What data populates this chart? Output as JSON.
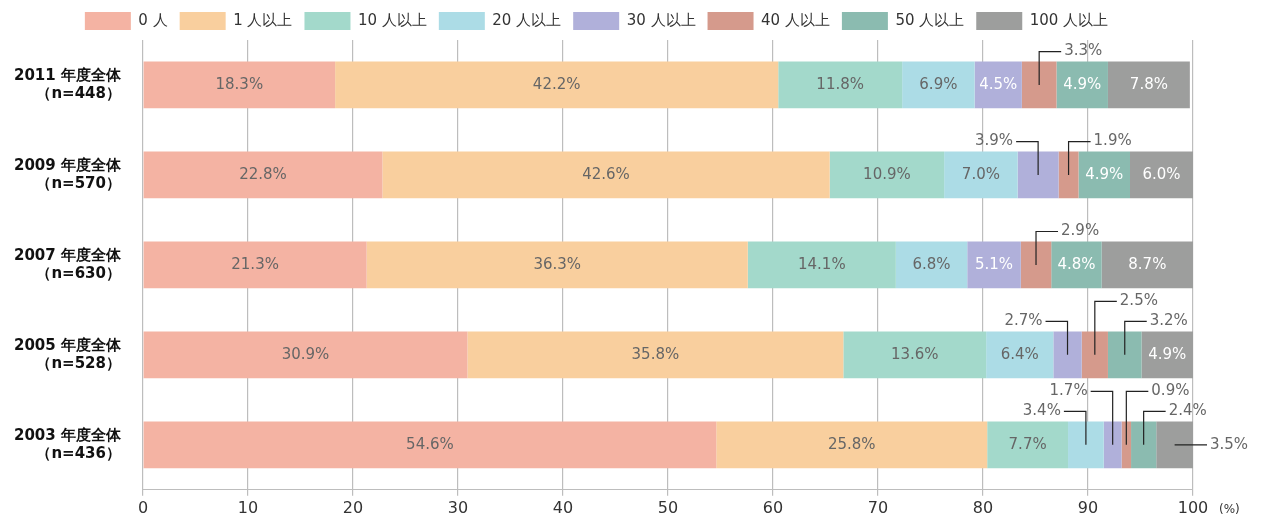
{
  "chart_data": {
    "type": "bar",
    "orientation": "horizontal",
    "stacked": true,
    "xlabel": "(%)",
    "categories": [
      "2011 年度全体（n=448）",
      "2009 年度全体（n=570）",
      "2007 年度全体（n=630）",
      "2005 年度全体（n=528）",
      "2003 年度全体（n=436）"
    ],
    "series": [
      {
        "name": "0 人",
        "color": "#f4b3a3",
        "values": [
          18.3,
          22.8,
          21.3,
          30.9,
          54.6
        ],
        "value_labels": [
          "18.3%",
          "22.8%",
          "21.3%",
          "30.9%",
          "54.6%"
        ]
      },
      {
        "name": "1 人以上",
        "color": "#f9cf9e",
        "values": [
          42.2,
          42.6,
          36.3,
          35.8,
          25.8
        ],
        "value_labels": [
          "42.2%",
          "42.6%",
          "36.3%",
          "35.8%",
          "25.8%"
        ]
      },
      {
        "name": "10 人以上",
        "color": "#a3d9cb",
        "values": [
          11.8,
          10.9,
          14.1,
          13.6,
          7.7
        ],
        "value_labels": [
          "11.8%",
          "10.9%",
          "14.1%",
          "13.6%",
          "7.7%"
        ]
      },
      {
        "name": "20 人以上",
        "color": "#acdce6",
        "values": [
          6.9,
          7.0,
          6.8,
          6.4,
          3.4
        ],
        "value_labels": [
          "6.9%",
          "7.0%",
          "6.8%",
          "6.4%",
          "3.4%"
        ]
      },
      {
        "name": "30 人以上",
        "color": "#b0b0da",
        "values": [
          4.5,
          3.9,
          5.1,
          2.7,
          1.7
        ],
        "value_labels": [
          "4.5%",
          "3.9%",
          "5.1%",
          "2.7%",
          "1.7%"
        ]
      },
      {
        "name": "40 人以上",
        "color": "#d59a8c",
        "values": [
          3.3,
          1.9,
          2.9,
          2.5,
          0.9
        ],
        "value_labels": [
          "3.3%",
          "1.9%",
          "2.9%",
          "2.5%",
          "0.9%"
        ]
      },
      {
        "name": "50 人以上",
        "color": "#8bbbb0",
        "values": [
          4.9,
          4.9,
          4.8,
          3.2,
          2.4
        ],
        "value_labels": [
          "4.9%",
          "4.9%",
          "4.8%",
          "3.2%",
          "2.4%"
        ]
      },
      {
        "name": "100 人以上",
        "color": "#9d9e9d",
        "values": [
          7.8,
          6.0,
          8.7,
          4.9,
          3.5
        ],
        "value_labels": [
          "7.8%",
          "6.0%",
          "8.7%",
          "4.9%",
          "3.5%"
        ]
      }
    ],
    "xlim": [
      0,
      100
    ],
    "xticks": [
      0,
      10,
      20,
      30,
      40,
      50,
      60,
      70,
      80,
      90,
      100
    ],
    "grid": "x",
    "legend": "top"
  }
}
